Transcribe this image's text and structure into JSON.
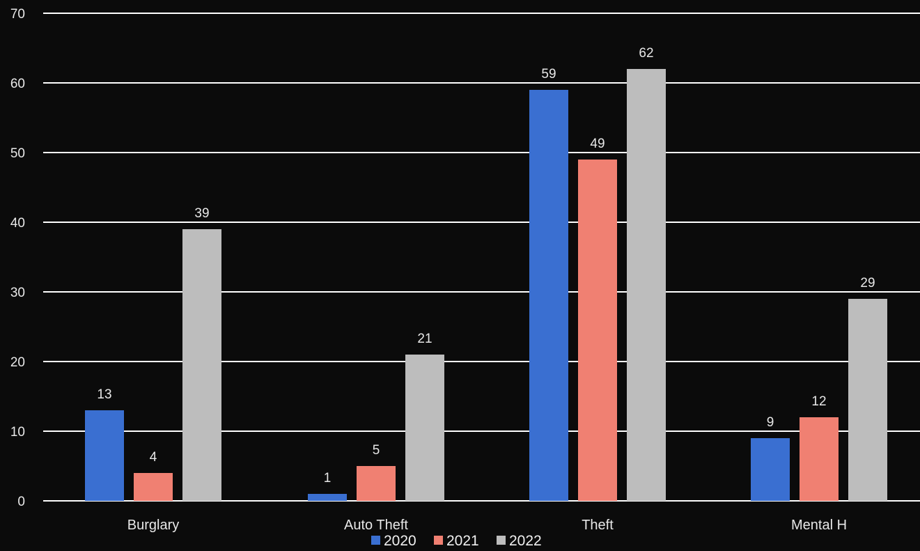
{
  "chart_data": {
    "type": "bar",
    "categories": [
      "Burglary",
      "Auto Theft",
      "Theft",
      "Mental H"
    ],
    "series": [
      {
        "name": "2020",
        "values": [
          13,
          1,
          59,
          9
        ],
        "color": "#3a6fd1"
      },
      {
        "name": "2021",
        "values": [
          4,
          5,
          49,
          12
        ],
        "color": "#f08072"
      },
      {
        "name": "2022",
        "values": [
          39,
          21,
          62,
          29
        ],
        "color": "#bdbdbd"
      }
    ],
    "yticks": [
      "0",
      "10",
      "20",
      "30",
      "40",
      "50",
      "60",
      "70"
    ],
    "ylim": [
      0,
      70
    ],
    "grid": true,
    "data_labels": true,
    "legend_position": "bottom",
    "background_color": "#0b0b0b",
    "gridline_color": "#ffffff",
    "text_color": "#e8e8e8"
  }
}
